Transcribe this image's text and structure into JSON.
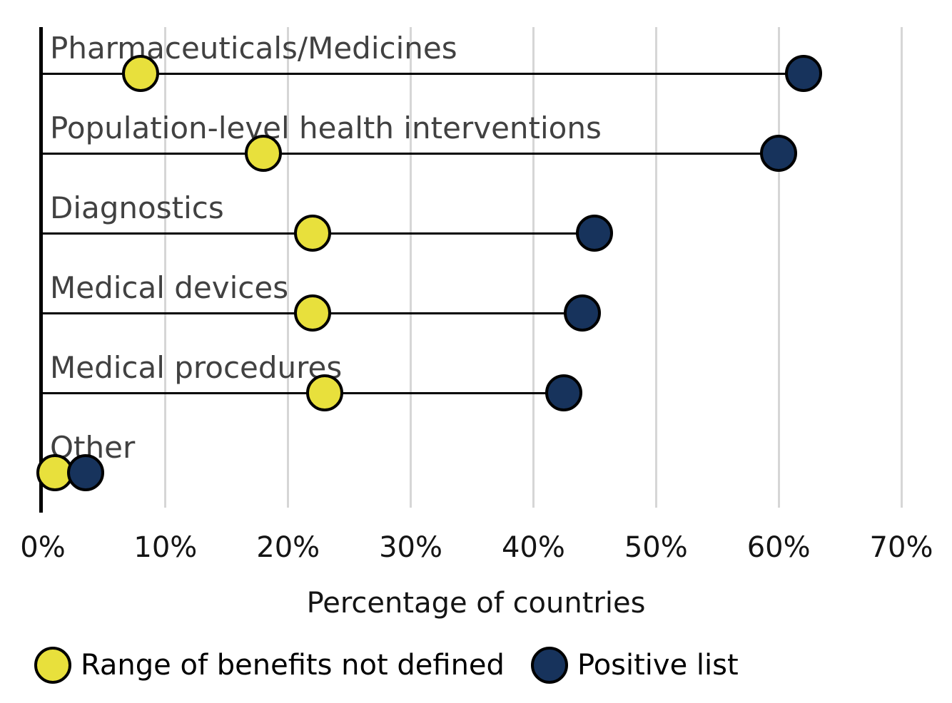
{
  "chart_data": {
    "type": "dumbbell",
    "title": "",
    "categories": [
      "Pharmaceuticals/Medicines",
      "Population-level health interventions",
      "Diagnostics",
      "Medical devices",
      "Medical procedures",
      "Other"
    ],
    "series": [
      {
        "name": "Range of benefits not defined",
        "color": "#e8e03c",
        "values": [
          8,
          18,
          22,
          22,
          23,
          1
        ]
      },
      {
        "name": "Positive list",
        "color": "#17335c",
        "values": [
          62,
          60,
          45,
          44,
          42.5,
          3.5
        ]
      }
    ],
    "xlabel": "Percentage of countries",
    "xlim": [
      0,
      70
    ],
    "x_tick_values": [
      0,
      10,
      20,
      30,
      40,
      50,
      60,
      70
    ],
    "x_tick_labels": [
      "0%",
      "10%",
      "20%",
      "30%",
      "40%",
      "50%",
      "60%",
      "70%"
    ],
    "grid": "vertical",
    "legend_position": "bottom"
  },
  "style": {
    "background": "#ffffff",
    "marker_outline_color": "#000000",
    "connector_color": "#000000",
    "axis_line_color": "#000000",
    "gridline_color": "#d6d6d6",
    "category_label_color": "#414141",
    "tick_label_color": "#141414"
  }
}
